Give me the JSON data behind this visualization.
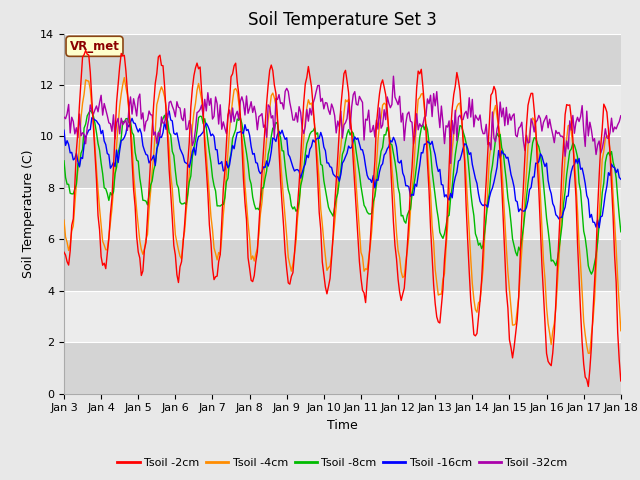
{
  "title": "Soil Temperature Set 3",
  "xlabel": "Time",
  "ylabel": "Soil Temperature (C)",
  "ylim": [
    0,
    14
  ],
  "xlim": [
    0,
    360
  ],
  "x_tick_labels": [
    "Jan 3",
    "Jan 4",
    "Jan 5",
    "Jan 6",
    "Jan 7",
    "Jan 8",
    "Jan 9",
    "Jan 10",
    "Jan 11",
    "Jan 12",
    "Jan 13",
    "Jan 14",
    "Jan 15",
    "Jan 16",
    "Jan 17",
    "Jan 18"
  ],
  "x_tick_positions": [
    0,
    24,
    48,
    72,
    96,
    120,
    144,
    168,
    192,
    216,
    240,
    264,
    288,
    312,
    336,
    360
  ],
  "series_colors": [
    "#ff0000",
    "#ff8c00",
    "#00bb00",
    "#0000ff",
    "#aa00aa"
  ],
  "series_labels": [
    "Tsoil -2cm",
    "Tsoil -4cm",
    "Tsoil -8cm",
    "Tsoil -16cm",
    "Tsoil -32cm"
  ],
  "legend_label": "VR_met",
  "fig_background": "#e8e8e8",
  "band_colors": [
    "#d8d8d8",
    "#ebebeb"
  ],
  "title_fontsize": 12,
  "axis_label_fontsize": 9,
  "tick_fontsize": 8
}
